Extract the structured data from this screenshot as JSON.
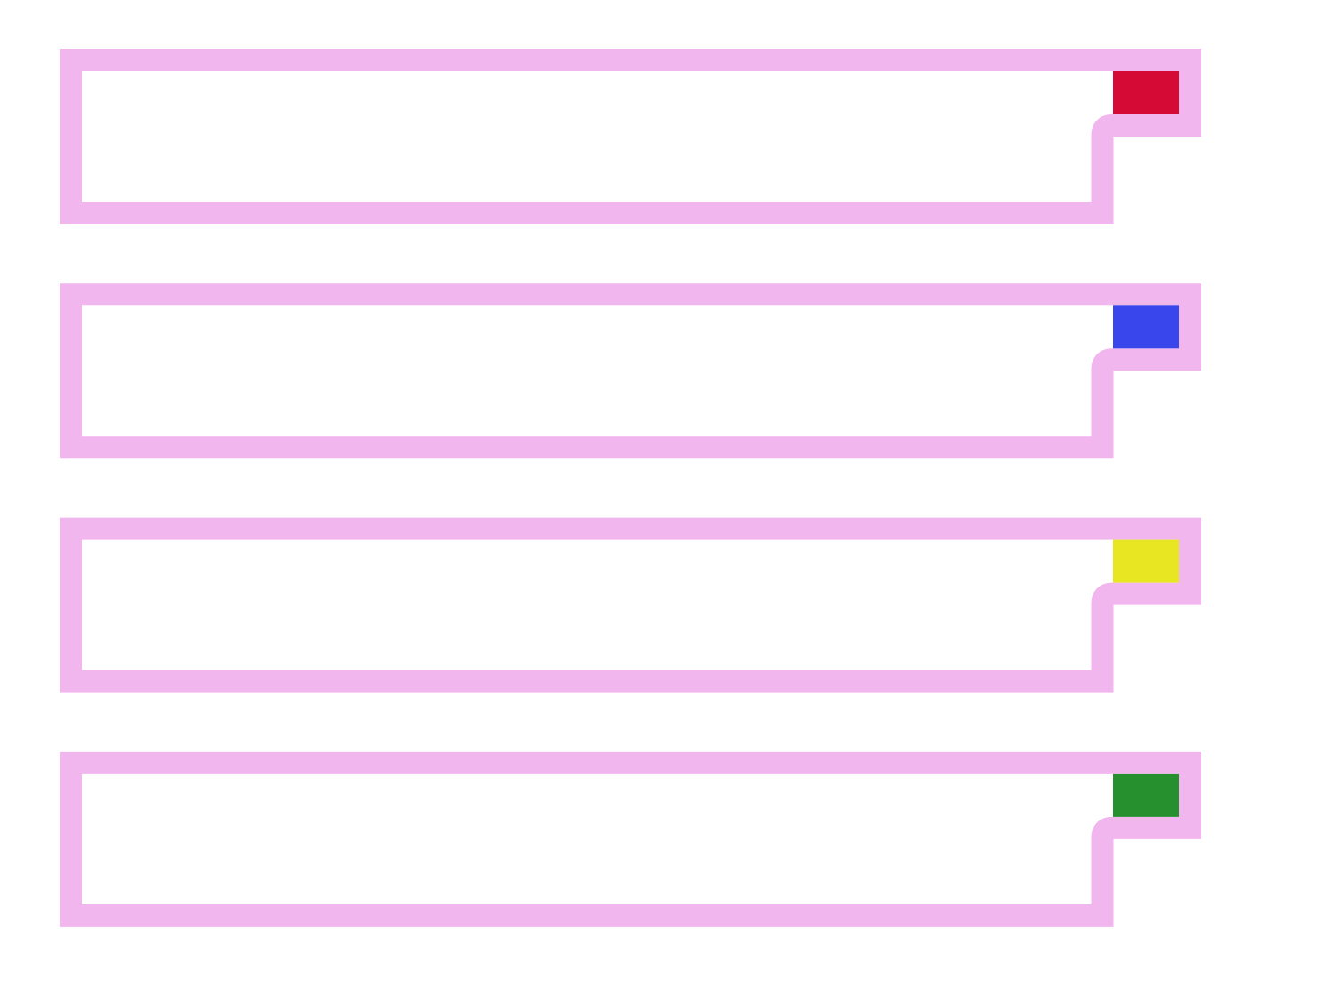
{
  "boxes": [
    {
      "color": "#d60b35"
    },
    {
      "color": "#3846eb"
    },
    {
      "color": "#e8e622"
    },
    {
      "color": "#26902e"
    }
  ]
}
